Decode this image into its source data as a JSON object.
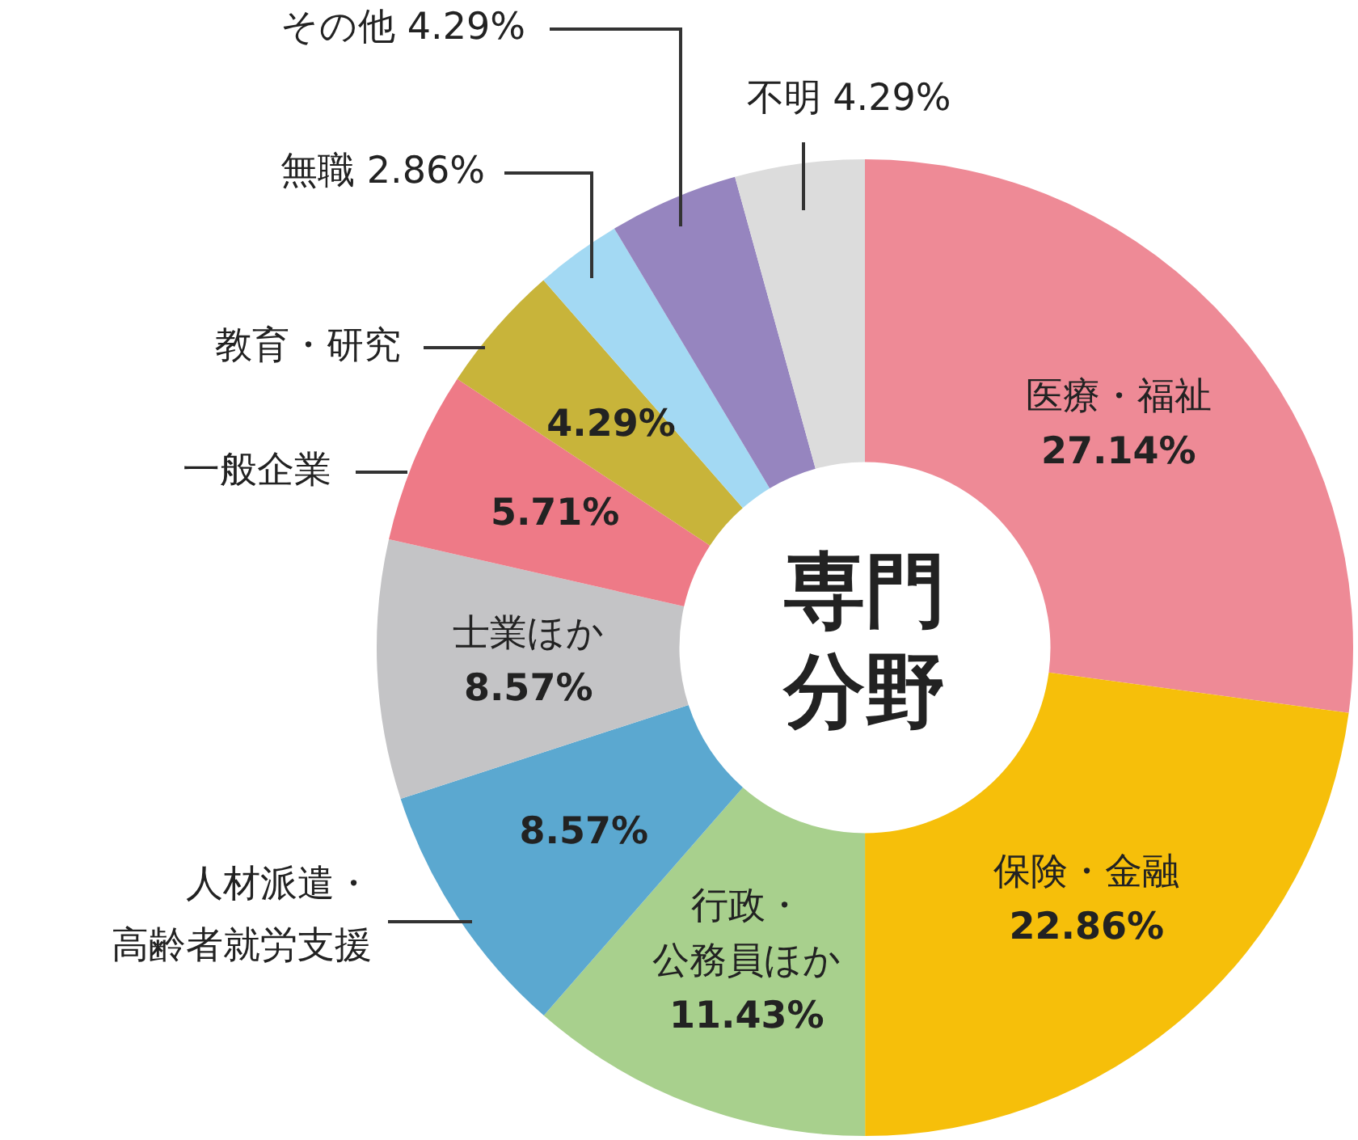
{
  "chart_data": {
    "type": "donut",
    "title": "専門分野",
    "categories": [
      "医療・福祉",
      "保険・金融",
      "行政・公務員ほか",
      "人材派遣・高齢者就労支援",
      "士業ほか",
      "一般企業",
      "教育・研究",
      "無職",
      "その他",
      "不明"
    ],
    "values": [
      27.14,
      22.86,
      11.43,
      8.57,
      8.57,
      5.71,
      4.29,
      2.86,
      4.29,
      4.29
    ],
    "colors": [
      "#ee8a96",
      "#f6bf0a",
      "#a8d08d",
      "#5ba8d0",
      "#c4c4c6",
      "#ee7a87",
      "#c8b43a",
      "#a3d9f3",
      "#9685bf",
      "#dcdcdc"
    ],
    "value_labels": [
      "27.14%",
      "22.86%",
      "11.43%",
      "8.57%",
      "8.57%",
      "5.71%",
      "4.29%",
      "2.86%",
      "4.29%",
      "4.29%"
    ],
    "legend": false
  }
}
